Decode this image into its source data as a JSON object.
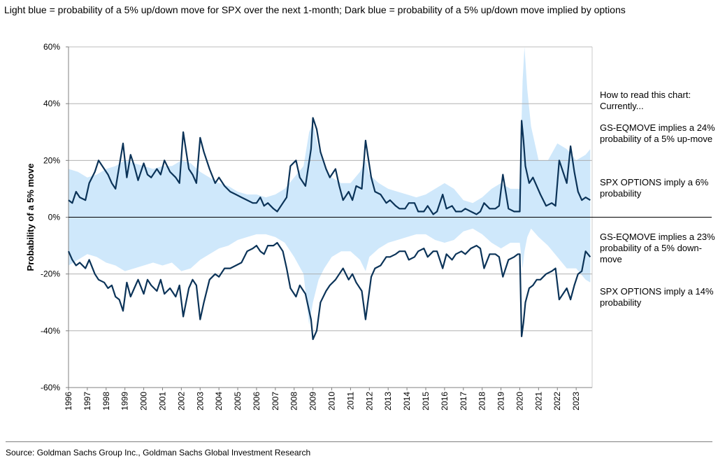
{
  "subtitle": "Light blue = probability of a 5% up/down move for SPX over the next 1-month; Dark blue = probability of a 5% up/down move implied by options",
  "source": "Source: Goldman Sachs Group Inc., Goldman Sachs Global Investment Research",
  "annotations": {
    "how_to_read": "How to read this chart: Currently...",
    "up_model": "GS-EQMOVE implies a 24% probability of a 5% up-move",
    "up_options": "SPX OPTIONS imply a 6% probability",
    "down_model": "GS-EQMOVE implies a 23% probability of a 5% down-move",
    "down_options": "SPX OPTIONS imply a 14% probability"
  },
  "colors": {
    "light_blue": "#cfe8fb",
    "dark_blue": "#0b3358",
    "grid": "#a6a6a6",
    "axis": "#808080"
  },
  "chart_data": {
    "type": "area",
    "ylabel": "Probability of a 5% move",
    "xlabel": "",
    "ylim": [
      -60,
      60
    ],
    "xlim": [
      1996,
      2023.85
    ],
    "yticks": [
      60,
      40,
      20,
      0,
      -20,
      -40,
      -60
    ],
    "ytick_labels": [
      "60%",
      "40%",
      "20%",
      "0%",
      "-20%",
      "-40%",
      "-60%"
    ],
    "xticks": [
      "1996",
      "1997",
      "1998",
      "1999",
      "2000",
      "2001",
      "2002",
      "2003",
      "2004",
      "2005",
      "2006",
      "2007",
      "2008",
      "2009",
      "2010",
      "2011",
      "2012",
      "2013",
      "2014",
      "2015",
      "2016",
      "2017",
      "2018",
      "2019",
      "2020",
      "2021",
      "2022",
      "2023"
    ],
    "grid": true,
    "legend": "none",
    "series": [
      {
        "kind": "area",
        "color": "light_blue",
        "x": [
          1996.0,
          1996.5,
          1997.0,
          1997.5,
          1998.0,
          1998.5,
          1999.0,
          1999.5,
          2000.0,
          2000.5,
          2001.0,
          2001.5,
          2002.0,
          2002.5,
          2003.0,
          2003.5,
          2004.0,
          2004.5,
          2005.0,
          2005.5,
          2006.0,
          2006.5,
          2007.0,
          2007.5,
          2008.0,
          2008.5,
          2008.8,
          2009.0,
          2009.3,
          2009.6,
          2010.0,
          2010.5,
          2011.0,
          2011.5,
          2011.8,
          2012.0,
          2012.5,
          2013.0,
          2013.5,
          2014.0,
          2014.5,
          2015.0,
          2015.5,
          2016.0,
          2016.5,
          2017.0,
          2017.5,
          2018.0,
          2018.5,
          2019.0,
          2019.5,
          2020.0,
          2020.15,
          2020.25,
          2020.4,
          2020.6,
          2021.0,
          2021.5,
          2022.0,
          2022.5,
          2023.0,
          2023.5,
          2023.75
        ],
        "y_up": [
          17,
          16,
          14,
          15,
          17,
          18,
          20,
          19,
          18,
          17,
          18,
          18,
          20,
          19,
          16,
          14,
          12,
          11,
          9,
          8,
          8,
          7,
          8,
          10,
          14,
          18,
          30,
          33,
          24,
          18,
          14,
          12,
          12,
          16,
          20,
          15,
          12,
          10,
          9,
          8,
          7,
          8,
          10,
          12,
          10,
          6,
          5,
          7,
          10,
          12,
          10,
          10,
          48,
          60,
          45,
          32,
          20,
          20,
          26,
          24,
          20,
          22,
          24
        ],
        "y_down": [
          -17,
          -15,
          -13,
          -14,
          -16,
          -17,
          -19,
          -18,
          -17,
          -16,
          -17,
          -16,
          -19,
          -18,
          -15,
          -13,
          -11,
          -10,
          -8,
          -7,
          -6,
          -6,
          -7,
          -9,
          -14,
          -20,
          -38,
          -30,
          -22,
          -18,
          -14,
          -12,
          -12,
          -15,
          -19,
          -14,
          -11,
          -9,
          -8,
          -7,
          -6,
          -6,
          -8,
          -9,
          -8,
          -5,
          -4,
          -6,
          -9,
          -11,
          -9,
          -9,
          -18,
          -12,
          -7,
          -4,
          -7,
          -10,
          -14,
          -18,
          -18,
          -22,
          -23
        ]
      },
      {
        "kind": "line",
        "color": "dark_blue",
        "x": [
          1996.0,
          1996.2,
          1996.4,
          1996.6,
          1996.9,
          1997.1,
          1997.4,
          1997.6,
          1997.9,
          1998.1,
          1998.3,
          1998.5,
          1998.7,
          1998.9,
          1999.1,
          1999.3,
          1999.5,
          1999.7,
          2000.0,
          2000.2,
          2000.4,
          2000.7,
          2000.9,
          2001.1,
          2001.4,
          2001.7,
          2001.9,
          2002.1,
          2002.4,
          2002.6,
          2002.8,
          2003.0,
          2003.2,
          2003.5,
          2003.8,
          2004.0,
          2004.3,
          2004.6,
          2004.9,
          2005.2,
          2005.5,
          2005.8,
          2006.0,
          2006.2,
          2006.4,
          2006.6,
          2006.9,
          2007.1,
          2007.4,
          2007.6,
          2007.8,
          2008.1,
          2008.3,
          2008.6,
          2008.9,
          2009.0,
          2009.2,
          2009.4,
          2009.7,
          2009.9,
          2010.2,
          2010.4,
          2010.6,
          2010.9,
          2011.1,
          2011.3,
          2011.6,
          2011.8,
          2012.1,
          2012.3,
          2012.6,
          2012.9,
          2013.1,
          2013.4,
          2013.6,
          2013.9,
          2014.1,
          2014.4,
          2014.6,
          2014.9,
          2015.1,
          2015.4,
          2015.6,
          2015.9,
          2016.1,
          2016.4,
          2016.6,
          2016.9,
          2017.1,
          2017.4,
          2017.7,
          2017.9,
          2018.1,
          2018.4,
          2018.7,
          2018.9,
          2019.1,
          2019.4,
          2019.7,
          2019.9,
          2020.0,
          2020.1,
          2020.2,
          2020.3,
          2020.5,
          2020.7,
          2020.9,
          2021.1,
          2021.4,
          2021.7,
          2021.9,
          2022.1,
          2022.3,
          2022.5,
          2022.7,
          2022.9,
          2023.1,
          2023.3,
          2023.5,
          2023.75
        ],
        "y_up": [
          6,
          5,
          9,
          7,
          6,
          12,
          16,
          20,
          17,
          15,
          12,
          10,
          18,
          26,
          14,
          22,
          18,
          13,
          19,
          15,
          14,
          17,
          15,
          20,
          16,
          14,
          12,
          30,
          17,
          15,
          12,
          28,
          23,
          17,
          12,
          14,
          11,
          9,
          8,
          7,
          6,
          5,
          5,
          7,
          4,
          5,
          3,
          2,
          5,
          7,
          18,
          20,
          14,
          11,
          24,
          35,
          31,
          23,
          17,
          14,
          17,
          11,
          6,
          9,
          6,
          11,
          10,
          27,
          14,
          9,
          8,
          5,
          6,
          4,
          3,
          3,
          5,
          5,
          2,
          2,
          4,
          1,
          2,
          8,
          3,
          4,
          2,
          2,
          3,
          2,
          1,
          2,
          5,
          3,
          3,
          4,
          15,
          3,
          2,
          2,
          2,
          34,
          27,
          18,
          12,
          14,
          11,
          8,
          4,
          5,
          4,
          20,
          16,
          12,
          25,
          16,
          9,
          6,
          7,
          6
        ],
        "y_down": [
          -12,
          -15,
          -17,
          -16,
          -18,
          -15,
          -20,
          -22,
          -23,
          -25,
          -24,
          -28,
          -29,
          -33,
          -23,
          -28,
          -25,
          -22,
          -27,
          -22,
          -24,
          -26,
          -22,
          -27,
          -25,
          -28,
          -24,
          -35,
          -25,
          -22,
          -24,
          -36,
          -30,
          -22,
          -20,
          -21,
          -18,
          -18,
          -17,
          -16,
          -12,
          -11,
          -10,
          -12,
          -13,
          -10,
          -10,
          -9,
          -12,
          -18,
          -25,
          -28,
          -24,
          -27,
          -36,
          -43,
          -40,
          -30,
          -26,
          -24,
          -22,
          -20,
          -18,
          -22,
          -20,
          -23,
          -26,
          -36,
          -21,
          -18,
          -17,
          -14,
          -14,
          -13,
          -12,
          -12,
          -15,
          -14,
          -12,
          -11,
          -14,
          -12,
          -12,
          -18,
          -13,
          -15,
          -13,
          -12,
          -13,
          -11,
          -10,
          -11,
          -18,
          -13,
          -13,
          -14,
          -21,
          -15,
          -14,
          -13,
          -13,
          -42,
          -37,
          -30,
          -25,
          -24,
          -22,
          -22,
          -20,
          -19,
          -18,
          -29,
          -27,
          -25,
          -29,
          -24,
          -20,
          -19,
          -12,
          -14
        ]
      }
    ]
  }
}
